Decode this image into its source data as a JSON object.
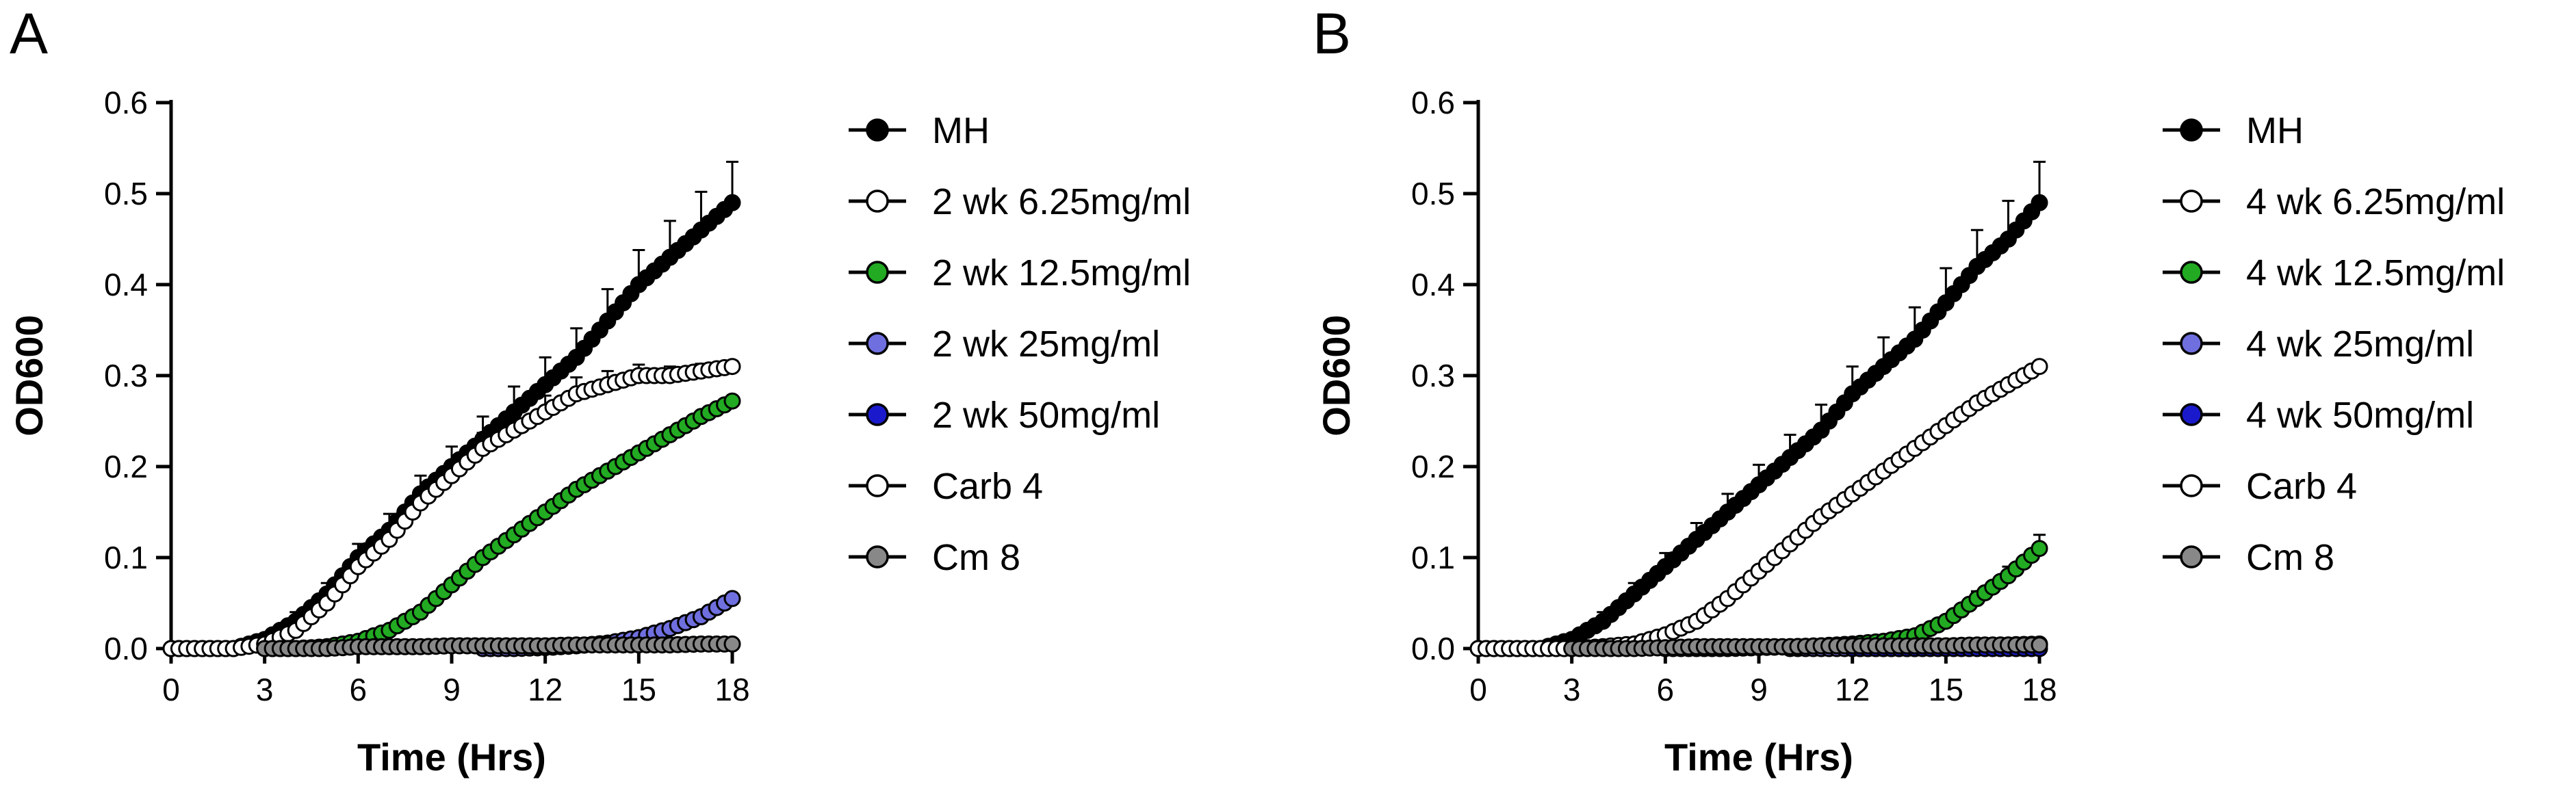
{
  "figure": {
    "panels": [
      {
        "letter": "A"
      },
      {
        "letter": "B"
      }
    ]
  },
  "chart_data": [
    {
      "type": "line",
      "panel": "A",
      "title": "",
      "xlabel": "Time (Hrs)",
      "ylabel": "OD600",
      "xlim": [
        0,
        18
      ],
      "ylim": [
        0,
        0.6
      ],
      "xticks": [
        0,
        3,
        6,
        9,
        12,
        15,
        18
      ],
      "yticks": [
        0.0,
        0.1,
        0.2,
        0.3,
        0.4,
        0.5,
        0.6
      ],
      "xtick_labels": [
        "0",
        "3",
        "6",
        "9",
        "12",
        "15",
        "18"
      ],
      "ytick_labels": [
        "0.0",
        "0.1",
        "0.2",
        "0.3",
        "0.4",
        "0.5",
        "0.6"
      ],
      "legend_position": "right",
      "series": [
        {
          "name": "MH",
          "color": "#000000",
          "fill": "#000000",
          "x": [
            0,
            1,
            2,
            3,
            4,
            5,
            6,
            7,
            8,
            9,
            10,
            11,
            12,
            13,
            14,
            15,
            16,
            17,
            18
          ],
          "y": [
            0.0,
            0.0,
            0.0,
            0.01,
            0.03,
            0.06,
            0.1,
            0.13,
            0.17,
            0.2,
            0.23,
            0.26,
            0.29,
            0.32,
            0.36,
            0.4,
            0.43,
            0.46,
            0.49
          ],
          "error": [
            0,
            0,
            0,
            0.005,
            0.01,
            0.012,
            0.015,
            0.018,
            0.02,
            0.022,
            0.025,
            0.028,
            0.03,
            0.032,
            0.035,
            0.038,
            0.04,
            0.042,
            0.045
          ]
        },
        {
          "name": "2 wk 6.25mg/ml",
          "color": "#000000",
          "fill": "#ffffff",
          "x": [
            0,
            1,
            2,
            3,
            4,
            5,
            6,
            7,
            8,
            9,
            10,
            11,
            12,
            13,
            14,
            15,
            16,
            17,
            18
          ],
          "y": [
            0.0,
            0.0,
            0.0,
            0.005,
            0.02,
            0.05,
            0.09,
            0.12,
            0.16,
            0.19,
            0.22,
            0.24,
            0.26,
            0.28,
            0.29,
            0.3,
            0.3,
            0.305,
            0.31
          ],
          "error": [
            0,
            0,
            0,
            0.004,
            0.008,
            0.01,
            0.012,
            0.014,
            0.015,
            0.016,
            0.017,
            0.018,
            0.018,
            0.018,
            0.015,
            0.012,
            0.01,
            0.008,
            0.006
          ]
        },
        {
          "name": "2 wk 12.5mg/ml",
          "color": "#000000",
          "fill": "#22aa22",
          "x": [
            3,
            4,
            5,
            6,
            7,
            8,
            9,
            10,
            11,
            12,
            13,
            14,
            15,
            16,
            17,
            18
          ],
          "y": [
            0.0,
            0.0,
            0.002,
            0.008,
            0.02,
            0.04,
            0.07,
            0.1,
            0.125,
            0.15,
            0.175,
            0.195,
            0.215,
            0.235,
            0.255,
            0.272
          ],
          "error": []
        },
        {
          "name": "2 wk 25mg/ml",
          "color": "#000000",
          "fill": "#6f6fdf",
          "x": [
            10,
            11,
            12,
            13,
            14,
            15,
            16,
            17,
            18
          ],
          "y": [
            0.0,
            0.0,
            0.001,
            0.003,
            0.006,
            0.012,
            0.022,
            0.035,
            0.055
          ],
          "error": []
        },
        {
          "name": "2 wk 50mg/ml",
          "color": "#000000",
          "fill": "#1a1acc",
          "x": [],
          "y": [],
          "error": []
        },
        {
          "name": "Carb 4",
          "color": "#000000",
          "fill": "#ffffff",
          "x": [],
          "y": [],
          "error": []
        },
        {
          "name": "Cm 8",
          "color": "#000000",
          "fill": "#888888",
          "x": [
            3,
            4,
            5,
            6,
            7,
            8,
            9,
            10,
            11,
            12,
            13,
            14,
            15,
            16,
            17,
            18
          ],
          "y": [
            0.0,
            0.0,
            0.0,
            0.002,
            0.002,
            0.002,
            0.003,
            0.003,
            0.003,
            0.003,
            0.004,
            0.004,
            0.004,
            0.004,
            0.005,
            0.005
          ],
          "error": []
        }
      ]
    },
    {
      "type": "line",
      "panel": "B",
      "title": "",
      "xlabel": "Time (Hrs)",
      "ylabel": "OD600",
      "xlim": [
        0,
        18
      ],
      "ylim": [
        0,
        0.6
      ],
      "xticks": [
        0,
        3,
        6,
        9,
        12,
        15,
        18
      ],
      "yticks": [
        0.0,
        0.1,
        0.2,
        0.3,
        0.4,
        0.5,
        0.6
      ],
      "xtick_labels": [
        "0",
        "3",
        "6",
        "9",
        "12",
        "15",
        "18"
      ],
      "ytick_labels": [
        "0.0",
        "0.1",
        "0.2",
        "0.3",
        "0.4",
        "0.5",
        "0.6"
      ],
      "legend_position": "right",
      "series": [
        {
          "name": "MH",
          "color": "#000000",
          "fill": "#000000",
          "x": [
            0,
            1,
            2,
            3,
            4,
            5,
            6,
            7,
            8,
            9,
            10,
            11,
            12,
            13,
            14,
            15,
            16,
            17,
            18
          ],
          "y": [
            0.0,
            0.0,
            0.0,
            0.01,
            0.03,
            0.06,
            0.09,
            0.12,
            0.15,
            0.18,
            0.21,
            0.24,
            0.28,
            0.31,
            0.34,
            0.38,
            0.42,
            0.45,
            0.49
          ],
          "error": [
            0,
            0,
            0,
            0.005,
            0.01,
            0.012,
            0.015,
            0.018,
            0.02,
            0.022,
            0.025,
            0.028,
            0.03,
            0.032,
            0.035,
            0.038,
            0.04,
            0.042,
            0.045
          ]
        },
        {
          "name": "4 wk 6.25mg/ml",
          "color": "#000000",
          "fill": "#ffffff",
          "x": [
            0,
            1,
            2,
            3,
            4,
            5,
            6,
            7,
            8,
            9,
            10,
            11,
            12,
            13,
            14,
            15,
            16,
            17,
            18
          ],
          "y": [
            0.0,
            0.0,
            0.0,
            0.0,
            0.002,
            0.005,
            0.015,
            0.03,
            0.055,
            0.085,
            0.115,
            0.145,
            0.17,
            0.195,
            0.22,
            0.245,
            0.27,
            0.29,
            0.31
          ],
          "error": []
        },
        {
          "name": "4 wk 12.5mg/ml",
          "color": "#000000",
          "fill": "#22aa22",
          "x": [
            6,
            7,
            8,
            9,
            10,
            11,
            12,
            13,
            14,
            15,
            16,
            17,
            18
          ],
          "y": [
            0.0,
            0.0,
            0.0,
            0.001,
            0.002,
            0.003,
            0.005,
            0.008,
            0.014,
            0.03,
            0.055,
            0.08,
            0.11
          ],
          "error": [
            0,
            0,
            0,
            0,
            0,
            0,
            0,
            0,
            0.002,
            0.005,
            0.008,
            0.01,
            0.015
          ]
        },
        {
          "name": "4 wk 25mg/ml",
          "color": "#000000",
          "fill": "#6f6fdf",
          "x": [
            10,
            11,
            12,
            13,
            14,
            15,
            16,
            17,
            18
          ],
          "y": [
            0.0,
            0.0,
            0.0,
            0.0,
            0.0,
            0.002,
            0.003,
            0.004,
            0.005
          ],
          "error": []
        },
        {
          "name": "4 wk 50mg/ml",
          "color": "#000000",
          "fill": "#1a1acc",
          "x": [
            12,
            13,
            14,
            15,
            16,
            17,
            18
          ],
          "y": [
            0.0,
            0.0,
            0.0,
            0.0,
            0.0,
            0.0,
            0.0
          ],
          "error": []
        },
        {
          "name": "Carb 4",
          "color": "#000000",
          "fill": "#ffffff",
          "x": [],
          "y": [],
          "error": []
        },
        {
          "name": "Cm 8",
          "color": "#000000",
          "fill": "#888888",
          "x": [
            3,
            4,
            5,
            6,
            7,
            8,
            9,
            10,
            11,
            12,
            13,
            14,
            15,
            16,
            17,
            18
          ],
          "y": [
            0.0,
            0.0,
            0.0,
            0.001,
            0.002,
            0.002,
            0.002,
            0.002,
            0.003,
            0.003,
            0.003,
            0.003,
            0.003,
            0.004,
            0.004,
            0.004
          ],
          "error": []
        }
      ]
    }
  ]
}
